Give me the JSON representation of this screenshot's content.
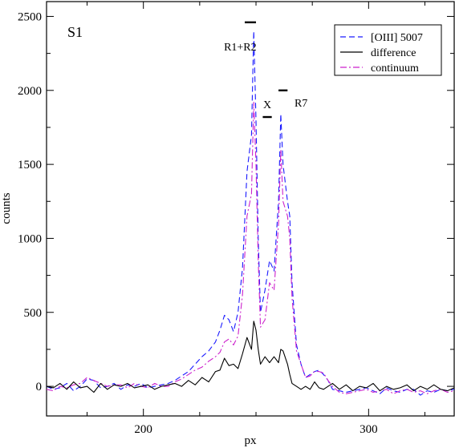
{
  "chart_data": {
    "type": "line",
    "panel_label": "S1",
    "xlabel": "px",
    "ylabel": "counts",
    "xlim": [
      157,
      338
    ],
    "ylim": [
      -200,
      2600
    ],
    "x_ticks": [
      200,
      300
    ],
    "y_ticks": [
      0,
      500,
      1000,
      1500,
      2000,
      2500
    ],
    "legend_position": "top-right",
    "annotations": [
      {
        "text": "R1+R2",
        "x": 243,
        "y": 2270
      },
      {
        "text": "X",
        "x": 255,
        "y": 1880
      },
      {
        "text": "R7",
        "x": 270,
        "y": 1890
      }
    ],
    "marker_bars": [
      {
        "x": [
          245,
          250
        ],
        "y": 2460
      },
      {
        "x": [
          253,
          257
        ],
        "y": 1820
      },
      {
        "x": [
          260,
          264
        ],
        "y": 2000
      }
    ],
    "series": [
      {
        "name": "[OIII] 5007",
        "color": "#1a1aff",
        "style": "dashed",
        "x": [
          157,
          160,
          163,
          166,
          169,
          172,
          175,
          178,
          181,
          184,
          187,
          190,
          193,
          196,
          199,
          202,
          205,
          208,
          211,
          214,
          217,
          220,
          223,
          226,
          229,
          232,
          234,
          236,
          238,
          240,
          242,
          244,
          246,
          248,
          249,
          250,
          251,
          252,
          254,
          256,
          258,
          260,
          261,
          262,
          264,
          265,
          266,
          268,
          270,
          272,
          274,
          276,
          278,
          280,
          282,
          284,
          287,
          290,
          293,
          296,
          299,
          302,
          305,
          308,
          311,
          314,
          317,
          320,
          323,
          326,
          329,
          332,
          335,
          338
        ],
        "values": [
          0,
          -20,
          -10,
          20,
          -30,
          0,
          50,
          40,
          -10,
          0,
          20,
          -20,
          10,
          0,
          20,
          -10,
          0,
          10,
          20,
          40,
          70,
          100,
          150,
          200,
          240,
          300,
          380,
          480,
          450,
          370,
          500,
          800,
          1450,
          1700,
          2400,
          1800,
          1000,
          500,
          650,
          850,
          780,
          1250,
          1840,
          1500,
          1250,
          1150,
          700,
          280,
          150,
          60,
          80,
          100,
          110,
          80,
          40,
          -20,
          -30,
          -40,
          -30,
          -20,
          -10,
          -30,
          -50,
          -10,
          -30,
          -40,
          -20,
          -20,
          -60,
          -30,
          -40,
          -20,
          -30,
          -20
        ]
      },
      {
        "name": "difference",
        "color": "#000000",
        "style": "solid",
        "x": [
          157,
          160,
          163,
          166,
          169,
          172,
          175,
          178,
          181,
          184,
          187,
          190,
          193,
          196,
          199,
          202,
          205,
          208,
          211,
          214,
          217,
          220,
          223,
          226,
          229,
          232,
          234,
          236,
          238,
          240,
          242,
          244,
          246,
          248,
          249,
          250,
          251,
          252,
          254,
          256,
          258,
          260,
          261,
          262,
          264,
          265,
          266,
          268,
          270,
          272,
          274,
          276,
          278,
          280,
          282,
          284,
          287,
          290,
          293,
          296,
          299,
          302,
          305,
          308,
          311,
          314,
          317,
          320,
          323,
          326,
          329,
          332,
          335,
          338
        ],
        "values": [
          0,
          -10,
          20,
          -20,
          30,
          -10,
          0,
          -40,
          20,
          -20,
          10,
          0,
          20,
          -10,
          0,
          10,
          -20,
          0,
          10,
          20,
          0,
          40,
          10,
          60,
          30,
          100,
          110,
          190,
          140,
          150,
          120,
          220,
          330,
          250,
          440,
          380,
          250,
          150,
          200,
          160,
          200,
          160,
          250,
          240,
          150,
          80,
          20,
          0,
          -20,
          0,
          -20,
          30,
          -10,
          -20,
          0,
          20,
          -20,
          10,
          -30,
          0,
          -10,
          20,
          -30,
          0,
          -20,
          -10,
          10,
          -30,
          0,
          -20,
          10,
          -20,
          -30,
          -10
        ]
      },
      {
        "name": "continuum",
        "color": "#cc22cc",
        "style": "dashdot",
        "x": [
          157,
          160,
          163,
          166,
          169,
          172,
          175,
          178,
          181,
          184,
          187,
          190,
          193,
          196,
          199,
          202,
          205,
          208,
          211,
          214,
          217,
          220,
          223,
          226,
          229,
          232,
          234,
          236,
          238,
          240,
          242,
          244,
          246,
          248,
          249,
          250,
          251,
          252,
          254,
          256,
          258,
          260,
          261,
          262,
          264,
          265,
          266,
          268,
          270,
          272,
          274,
          276,
          278,
          280,
          282,
          284,
          287,
          290,
          293,
          296,
          299,
          302,
          305,
          308,
          311,
          314,
          317,
          320,
          323,
          326,
          329,
          332,
          335,
          338
        ],
        "values": [
          -20,
          -30,
          0,
          -10,
          10,
          20,
          60,
          40,
          20,
          0,
          10,
          10,
          -10,
          20,
          0,
          -10,
          20,
          0,
          0,
          30,
          50,
          80,
          110,
          130,
          170,
          200,
          230,
          300,
          320,
          280,
          340,
          620,
          1150,
          1300,
          1920,
          1500,
          850,
          400,
          450,
          700,
          650,
          1100,
          1600,
          1250,
          1150,
          1000,
          600,
          240,
          150,
          60,
          70,
          100,
          100,
          90,
          40,
          0,
          -40,
          -50,
          -40,
          -30,
          -20,
          -40,
          -30,
          -20,
          -50,
          -30,
          -20,
          -40,
          -30,
          -50,
          -30,
          -20,
          -40,
          -30
        ]
      }
    ]
  }
}
